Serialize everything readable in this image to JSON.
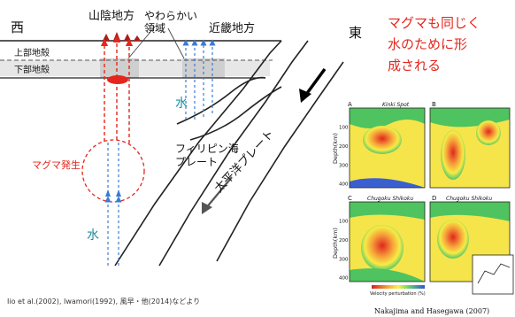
{
  "labels": {
    "west": "西",
    "east": "東",
    "san_in": "山陰地方",
    "soft_region": "やわらかい\n領域",
    "kinki": "近畿地方",
    "upper_crust": "上部地殻",
    "lower_crust": "下部地殻",
    "water_top": "水",
    "water_bottom": "水",
    "magma_generation": "マグマ発生",
    "philippine_plate": "フィリピン海\nプレート",
    "pacific_plate": "太平洋プレート",
    "magma_note": "マグマも同じく\n水のために形\n成される",
    "citation": "Iio et al.(2002), Iwamori(1992), 風早・他(2014)などより",
    "panel_credit": "Nakajima and Hasegawa (2007)"
  },
  "panels": [
    {
      "id": "A",
      "title": "Kinki Spot"
    },
    {
      "id": "B",
      "title": ""
    },
    {
      "id": "C",
      "title": "Chugoku  Shikoku"
    },
    {
      "id": "D",
      "title": "Chugoku  Shikoku"
    }
  ],
  "panel_axis": {
    "ylabel": "Depth(km)",
    "ticks": [
      "100",
      "200",
      "300",
      "400"
    ],
    "colorbar": "Velocity perturbation (%)"
  },
  "colors": {
    "accent_red": "#e4261c",
    "water_blue": "#3a7bd5",
    "water_label": "#1b8fa1",
    "crust_gray": "#d9d9d9"
  }
}
